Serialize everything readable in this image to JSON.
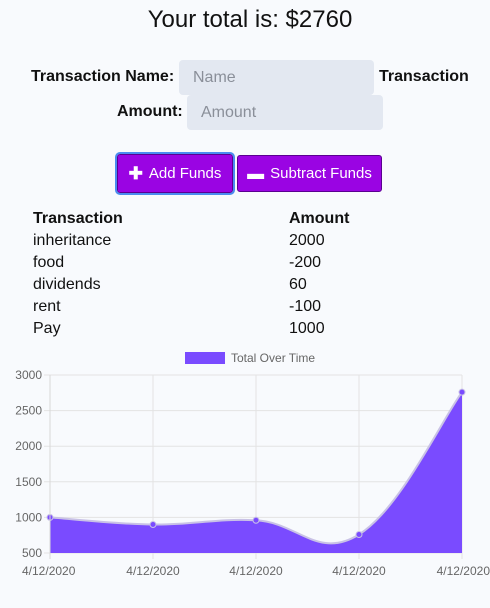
{
  "header": {
    "total_text": "Your total is: $2760"
  },
  "form": {
    "name_label": "Transaction Name:",
    "name_placeholder": "Name",
    "name_trailing_label": "Transaction",
    "amount_label": "Amount:",
    "amount_placeholder": "Amount",
    "add_label": "Add Funds",
    "subtract_label": "Subtract Funds",
    "add_icon": "plus-icon",
    "subtract_icon": "minus-icon"
  },
  "table": {
    "headers": [
      "Transaction",
      "Amount"
    ],
    "rows": [
      {
        "name": "inheritance",
        "amount": "2000"
      },
      {
        "name": "food",
        "amount": "-200"
      },
      {
        "name": "dividends",
        "amount": "60"
      },
      {
        "name": "rent",
        "amount": "-100"
      },
      {
        "name": "Pay",
        "amount": "1000"
      }
    ]
  },
  "colors": {
    "button": "#9a04e3",
    "area_fill": "#7a4bff",
    "point": "#7a4bff"
  },
  "chart_data": {
    "type": "area",
    "title": "",
    "series": [
      {
        "name": "Total Over Time",
        "values": [
          1000,
          900,
          960,
          760,
          2760
        ]
      }
    ],
    "categories": [
      "4/12/2020",
      "4/12/2020",
      "4/12/2020",
      "4/12/2020",
      "4/12/2020"
    ],
    "yticks": [
      500,
      1000,
      1500,
      2000,
      2500,
      3000
    ],
    "ylim": [
      500,
      3000
    ],
    "grid": true,
    "legend": "top"
  }
}
